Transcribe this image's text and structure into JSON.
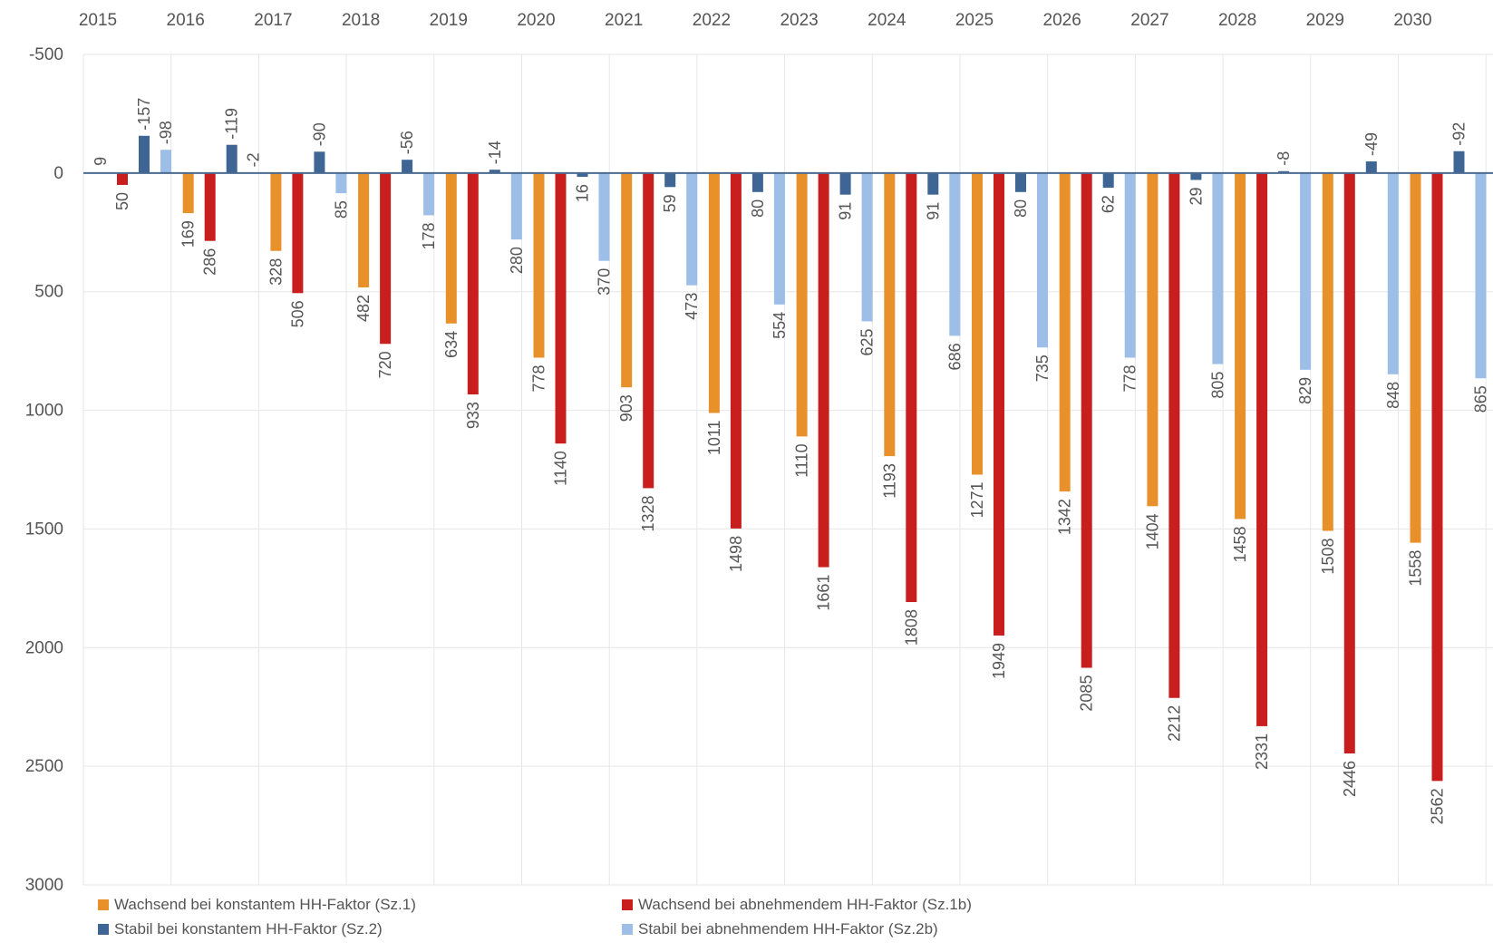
{
  "chart_data": {
    "type": "bar",
    "categories": [
      "2015",
      "2016",
      "2017",
      "2018",
      "2019",
      "2020",
      "2021",
      "2022",
      "2023",
      "2024",
      "2025",
      "2026",
      "2027",
      "2028",
      "2029",
      "2030"
    ],
    "y_axis": {
      "ticks": [
        -500,
        0,
        500,
        1000,
        1500,
        2000,
        2500,
        3000
      ],
      "tick_labels": [
        "-500",
        "0",
        "500",
        "1000",
        "1500",
        "2000",
        "2500",
        "3000"
      ],
      "range": [
        -500,
        3000
      ],
      "inverted": true
    },
    "grid": true,
    "legend_position": "bottom",
    "series": [
      {
        "name": "Wachsend bei konstantem HH-Faktor (Sz.1)",
        "color": "#E8912B",
        "values": [
          null,
          169,
          328,
          482,
          634,
          778,
          903,
          1011,
          1110,
          1193,
          1271,
          1342,
          1404,
          1458,
          1508,
          1558
        ],
        "labels": [
          "",
          "169",
          "328",
          "482",
          "634",
          "778",
          "903",
          "1011",
          "1110",
          "1193",
          "1271",
          "1342",
          "1404",
          "1458",
          "1508",
          "1558"
        ]
      },
      {
        "name": "Wachsend bei abnehmendem HH-Faktor (Sz.1b)",
        "color": "#C81E1E",
        "values": [
          50,
          286,
          506,
          720,
          933,
          1140,
          1328,
          1498,
          1661,
          1808,
          1949,
          2085,
          2212,
          2331,
          2446,
          2562
        ],
        "labels": [
          "50",
          "286",
          "506",
          "720",
          "933",
          "1140",
          "1328",
          "1498",
          "1661",
          "1808",
          "1949",
          "2085",
          "2212",
          "2331",
          "2446",
          "2562"
        ]
      },
      {
        "name": "Stabil bei konstantem HH-Faktor (Sz.2)",
        "color": "#3E6593",
        "values": [
          -157,
          -119,
          -90,
          -56,
          -14,
          16,
          59,
          80,
          91,
          91,
          80,
          62,
          29,
          -8,
          -49,
          -92
        ],
        "labels": [
          "-157",
          "-119",
          "-90",
          "-56",
          "-14",
          "16",
          "59",
          "80",
          "91",
          "91",
          "80",
          "62",
          "29",
          "-8",
          "-49",
          "-92"
        ]
      },
      {
        "name": "Stabil bei abnehmendem HH-Faktor (Sz.2b)",
        "color": "#9DBEE6",
        "values": [
          -98,
          -2,
          85,
          178,
          280,
          370,
          473,
          554,
          625,
          686,
          735,
          778,
          805,
          829,
          848,
          865
        ],
        "labels": [
          "-98",
          "-2",
          "85",
          "178",
          "280",
          "370",
          "473",
          "554",
          "625",
          "686",
          "735",
          "778",
          "805",
          "829",
          "848",
          "865"
        ]
      }
    ],
    "extra_labels": [
      {
        "category_index": 0,
        "series_index": 0,
        "text": "9"
      }
    ]
  }
}
